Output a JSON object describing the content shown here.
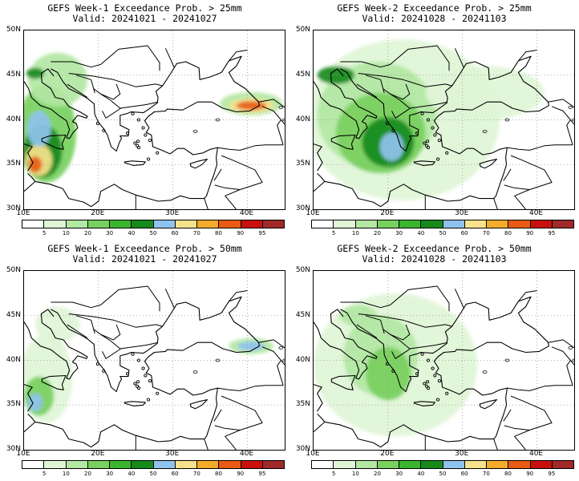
{
  "panels": [
    {
      "title": "GEFS Week-1 Exceedance Prob. > 25mm",
      "valid": "Valid: 20241021 - 20241027",
      "blobs": [
        {
          "lon": 13.0,
          "lat": 38.5,
          "rx": 4.0,
          "ry": 5.5,
          "level": 3
        },
        {
          "lon": 12.5,
          "lat": 36.5,
          "rx": 2.6,
          "ry": 3.0,
          "level": 5
        },
        {
          "lon": 12.0,
          "lat": 35.5,
          "rx": 1.8,
          "ry": 1.8,
          "level": 7
        },
        {
          "lon": 11.5,
          "lat": 35.0,
          "rx": 0.9,
          "ry": 0.9,
          "level": 9
        },
        {
          "lon": 12.0,
          "lat": 39.0,
          "rx": 1.6,
          "ry": 2.0,
          "level": 6
        },
        {
          "lon": 14.5,
          "lat": 44.5,
          "rx": 4.0,
          "ry": 3.0,
          "level": 2
        },
        {
          "lon": 11.5,
          "lat": 45.2,
          "rx": 1.2,
          "ry": 0.6,
          "level": 5
        },
        {
          "lon": 40.5,
          "lat": 41.8,
          "rx": 4.2,
          "ry": 1.3,
          "level": 2
        },
        {
          "lon": 40.5,
          "lat": 41.6,
          "rx": 3.0,
          "ry": 0.8,
          "level": 7
        },
        {
          "lon": 40.5,
          "lat": 41.6,
          "rx": 2.0,
          "ry": 0.5,
          "level": 9
        }
      ]
    },
    {
      "title": "GEFS Week-2 Exceedance Prob. > 25mm",
      "valid": "Valid: 20241028 - 20241103",
      "blobs": [
        {
          "lon": 22.0,
          "lat": 40.0,
          "rx": 13.0,
          "ry": 9.0,
          "level": 1
        },
        {
          "lon": 18.5,
          "lat": 40.5,
          "rx": 8.0,
          "ry": 6.0,
          "level": 2
        },
        {
          "lon": 19.0,
          "lat": 38.5,
          "rx": 6.0,
          "ry": 4.5,
          "level": 3
        },
        {
          "lon": 20.0,
          "lat": 37.5,
          "rx": 3.5,
          "ry": 2.8,
          "level": 5
        },
        {
          "lon": 20.5,
          "lat": 37.0,
          "rx": 1.6,
          "ry": 1.6,
          "level": 6
        },
        {
          "lon": 13.0,
          "lat": 45.0,
          "rx": 2.5,
          "ry": 1.0,
          "level": 5
        },
        {
          "lon": 33.0,
          "lat": 43.0,
          "rx": 8.0,
          "ry": 3.0,
          "level": 1
        }
      ]
    },
    {
      "title": "GEFS Week-1 Exceedance Prob. > 50mm",
      "valid": "Valid: 20241021 - 20241027",
      "blobs": [
        {
          "lon": 13.0,
          "lat": 38.0,
          "rx": 3.5,
          "ry": 5.0,
          "level": 1
        },
        {
          "lon": 12.0,
          "lat": 36.0,
          "rx": 2.0,
          "ry": 2.2,
          "level": 3
        },
        {
          "lon": 11.5,
          "lat": 35.3,
          "rx": 1.0,
          "ry": 1.0,
          "level": 6
        },
        {
          "lon": 40.5,
          "lat": 41.6,
          "rx": 3.0,
          "ry": 0.9,
          "level": 2
        },
        {
          "lon": 40.5,
          "lat": 41.6,
          "rx": 1.8,
          "ry": 0.5,
          "level": 6
        },
        {
          "lon": 14.5,
          "lat": 44.0,
          "rx": 3.0,
          "ry": 2.0,
          "level": 1
        }
      ]
    },
    {
      "title": "GEFS Week-2 Exceedance Prob. > 50mm",
      "valid": "Valid: 20241028 - 20241103",
      "blobs": [
        {
          "lon": 21.0,
          "lat": 39.5,
          "rx": 11.0,
          "ry": 8.0,
          "level": 1
        },
        {
          "lon": 19.0,
          "lat": 40.5,
          "rx": 5.0,
          "ry": 4.5,
          "level": 2
        },
        {
          "lon": 20.0,
          "lat": 38.5,
          "rx": 3.0,
          "ry": 3.0,
          "level": 3
        },
        {
          "lon": 16.0,
          "lat": 45.0,
          "rx": 2.5,
          "ry": 1.2,
          "level": 2
        }
      ]
    }
  ],
  "map": {
    "lon_ticks": [
      "10E",
      "20E",
      "30E",
      "40E"
    ],
    "lat_ticks": [
      "50N",
      "45N",
      "40N",
      "35N",
      "30N"
    ],
    "lon_range": [
      10,
      45
    ],
    "lat_range": [
      30,
      50
    ]
  },
  "colorbar": {
    "colors": [
      "#ffffff",
      "#dff5d6",
      "#b3e7a3",
      "#78d05e",
      "#3cb52e",
      "#178a1b",
      "#8fc3ee",
      "#f6e28a",
      "#f3ab2c",
      "#e95b15",
      "#c8100d",
      "#a02a2a"
    ],
    "labels": [
      "5",
      "10",
      "20",
      "30",
      "40",
      "50",
      "60",
      "70",
      "80",
      "90",
      "95"
    ]
  }
}
